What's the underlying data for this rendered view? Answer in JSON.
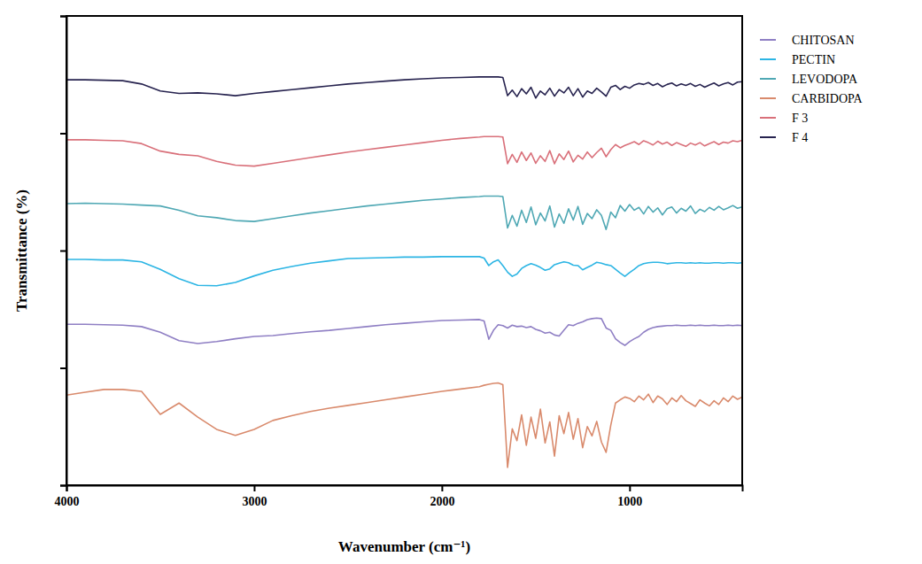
{
  "chart_data": {
    "type": "line",
    "x_label": "Wavenumber (cm⁻¹)",
    "y_label": "Transmittance (%)",
    "xlim": [
      4000,
      400
    ],
    "xticks": [
      4000,
      3000,
      2000,
      1000
    ],
    "ylim": [
      0,
      100
    ],
    "yticks": [
      0,
      25,
      50,
      75,
      100
    ],
    "tick_labels": "x",
    "legend": "right",
    "x": [
      4000,
      3900,
      3800,
      3700,
      3600,
      3500,
      3400,
      3300,
      3200,
      3100,
      3000,
      2900,
      2800,
      2700,
      2600,
      2500,
      2400,
      2300,
      2200,
      2100,
      2000,
      1900,
      1800,
      1775,
      1750,
      1725,
      1700,
      1675,
      1650,
      1625,
      1600,
      1575,
      1550,
      1525,
      1500,
      1475,
      1450,
      1425,
      1400,
      1375,
      1350,
      1325,
      1300,
      1275,
      1250,
      1225,
      1200,
      1175,
      1150,
      1125,
      1100,
      1075,
      1050,
      1025,
      1000,
      975,
      950,
      925,
      900,
      875,
      850,
      825,
      800,
      775,
      750,
      725,
      700,
      675,
      650,
      625,
      600,
      575,
      550,
      525,
      500,
      475,
      450,
      425,
      400
    ],
    "series": [
      {
        "name": "CHITOSAN",
        "color": "#8f7fc4",
        "values": [
          34.3,
          34.3,
          34.2,
          34.1,
          33.8,
          32.6,
          30.8,
          30.2,
          30.6,
          31.2,
          31.7,
          31.9,
          32.3,
          32.7,
          33.0,
          33.4,
          33.8,
          34.2,
          34.5,
          34.8,
          35.1,
          35.2,
          35.3,
          35.0,
          31.1,
          33.0,
          34.2,
          34.0,
          33.5,
          34.1,
          33.8,
          33.9,
          33.6,
          33.8,
          33.2,
          32.9,
          32.4,
          32.6,
          32.0,
          31.8,
          33.0,
          34.2,
          34.0,
          34.5,
          34.8,
          35.3,
          35.5,
          35.6,
          35.5,
          33.5,
          33.0,
          31.2,
          30.4,
          29.8,
          30.6,
          31.2,
          31.7,
          32.6,
          33.2,
          33.6,
          33.8,
          33.9,
          34.0,
          34.0,
          34.1,
          34.0,
          34.0,
          34.1,
          34.0,
          34.1,
          34.0,
          34.0,
          34.1,
          34.0,
          34.0,
          34.1,
          34.0,
          34.1,
          34.0
        ]
      },
      {
        "name": "PECTIN",
        "color": "#2cb5e4",
        "values": [
          48.1,
          48.1,
          48.0,
          48.0,
          47.6,
          46.0,
          44.0,
          42.6,
          42.5,
          43.2,
          44.6,
          45.8,
          46.6,
          47.3,
          47.8,
          48.3,
          48.4,
          48.5,
          48.6,
          48.6,
          48.7,
          48.7,
          48.7,
          48.4,
          46.8,
          47.6,
          48.0,
          46.8,
          45.4,
          44.5,
          45.0,
          46.2,
          46.8,
          47.2,
          46.9,
          46.4,
          45.8,
          46.1,
          47.0,
          47.3,
          47.6,
          47.4,
          46.9,
          46.8,
          45.9,
          46.4,
          46.9,
          47.5,
          47.3,
          47.0,
          46.8,
          46.0,
          45.2,
          44.5,
          45.3,
          46.0,
          46.8,
          47.2,
          47.4,
          47.5,
          47.5,
          47.4,
          47.2,
          47.3,
          47.4,
          47.4,
          47.3,
          47.4,
          47.3,
          47.4,
          47.3,
          47.3,
          47.4,
          47.4,
          47.3,
          47.4,
          47.4,
          47.3,
          47.4
        ]
      },
      {
        "name": "LEVODOPA",
        "color": "#4fa8b4",
        "values": [
          60.0,
          60.1,
          60.0,
          59.9,
          59.7,
          59.5,
          58.6,
          57.4,
          57.0,
          56.4,
          56.2,
          56.8,
          57.4,
          58.0,
          58.5,
          59.0,
          59.5,
          59.9,
          60.3,
          60.7,
          61.0,
          61.3,
          61.5,
          61.6,
          61.6,
          61.6,
          61.6,
          61.5,
          54.8,
          57.5,
          55.2,
          58.6,
          56.0,
          59.3,
          55.5,
          58.0,
          56.3,
          59.5,
          55.0,
          57.8,
          55.8,
          58.9,
          56.5,
          59.4,
          55.6,
          57.9,
          56.8,
          58.7,
          57.5,
          54.5,
          58.2,
          57.0,
          59.6,
          58.4,
          59.8,
          58.6,
          59.2,
          57.8,
          59.4,
          58.2,
          59.1,
          57.6,
          58.9,
          59.3,
          58.0,
          59.0,
          58.4,
          59.5,
          57.9,
          58.8,
          58.3,
          59.2,
          58.6,
          59.4,
          58.7,
          59.1,
          59.6,
          59.0,
          59.3
        ]
      },
      {
        "name": "CARBIDOPA",
        "color": "#d98a6c",
        "values": [
          19.2,
          19.8,
          20.4,
          20.4,
          20.0,
          15.1,
          17.5,
          14.5,
          11.9,
          10.6,
          11.9,
          13.8,
          14.8,
          15.7,
          16.4,
          17.0,
          17.6,
          18.2,
          18.8,
          19.4,
          20.0,
          20.5,
          21.0,
          21.3,
          21.5,
          21.7,
          21.8,
          21.4,
          3.8,
          12.0,
          9.5,
          15.0,
          8.5,
          14.5,
          10.0,
          16.2,
          9.0,
          13.5,
          6.2,
          14.8,
          11.0,
          15.5,
          9.8,
          14.2,
          8.0,
          12.5,
          10.5,
          13.6,
          9.2,
          7.0,
          12.8,
          17.5,
          18.2,
          18.8,
          18.5,
          17.8,
          19.0,
          18.2,
          19.4,
          17.6,
          19.0,
          18.4,
          17.2,
          18.6,
          17.8,
          19.1,
          18.0,
          17.4,
          16.8,
          18.2,
          17.5,
          16.9,
          18.0,
          17.2,
          18.6,
          17.8,
          19.0,
          18.3,
          18.8
        ]
      },
      {
        "name": "F 3",
        "color": "#d9707a",
        "values": [
          73.6,
          73.6,
          73.5,
          73.4,
          72.8,
          71.2,
          70.5,
          70.2,
          69.0,
          68.2,
          68.0,
          68.6,
          69.2,
          69.8,
          70.4,
          71.0,
          71.5,
          72.0,
          72.5,
          73.0,
          73.5,
          73.9,
          74.2,
          74.3,
          74.3,
          74.3,
          74.3,
          74.2,
          68.5,
          70.5,
          68.8,
          71.0,
          69.2,
          70.8,
          68.6,
          70.2,
          69.0,
          71.3,
          68.5,
          70.6,
          69.4,
          71.2,
          68.9,
          70.3,
          69.5,
          71.0,
          69.8,
          70.9,
          71.8,
          70.0,
          71.5,
          72.6,
          71.9,
          72.4,
          72.8,
          73.2,
          72.6,
          73.4,
          73.0,
          72.5,
          73.3,
          72.7,
          73.1,
          72.4,
          73.0,
          72.6,
          72.2,
          72.9,
          72.5,
          73.0,
          72.3,
          72.8,
          73.2,
          72.6,
          73.1,
          72.9,
          73.4,
          73.2,
          73.5
        ]
      },
      {
        "name": "F 4",
        "color": "#27234f",
        "values": [
          86.4,
          86.4,
          86.3,
          86.2,
          85.5,
          84.0,
          83.5,
          83.6,
          83.4,
          83.0,
          83.5,
          83.9,
          84.3,
          84.7,
          85.1,
          85.5,
          85.8,
          86.1,
          86.4,
          86.6,
          86.8,
          86.9,
          87.0,
          87.0,
          87.0,
          87.0,
          87.0,
          86.9,
          83.0,
          84.2,
          82.8,
          84.5,
          83.4,
          84.8,
          82.5,
          84.0,
          83.2,
          84.6,
          82.9,
          84.3,
          83.6,
          84.8,
          83.0,
          84.5,
          82.7,
          84.0,
          83.5,
          84.6,
          83.8,
          82.9,
          84.8,
          85.2,
          84.3,
          85.0,
          84.6,
          85.3,
          85.6,
          85.4,
          85.8,
          85.2,
          85.6,
          84.9,
          85.4,
          85.7,
          85.1,
          85.5,
          85.2,
          85.6,
          85.0,
          85.4,
          84.8,
          85.3,
          85.7,
          85.1,
          85.5,
          85.8,
          85.3,
          85.9,
          86.0
        ]
      }
    ]
  }
}
